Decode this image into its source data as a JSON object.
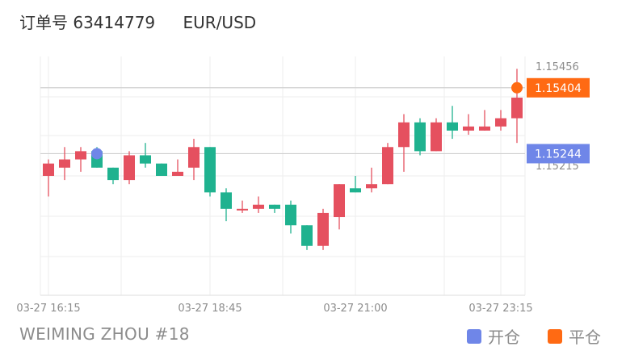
{
  "header": {
    "order_label": "订单号 63414779",
    "pair": "EUR/USD"
  },
  "footer": {
    "author": "WEIMING ZHOU #18",
    "legend_open": "开仓",
    "legend_close": "平仓"
  },
  "colors": {
    "up": "#e5505f",
    "down": "#1fb28f",
    "open_marker": "#6f86e8",
    "close_marker": "#ff6a13",
    "grid": "#eeeeee",
    "ref_line": "#cfcfcf"
  },
  "chart_data": {
    "type": "candlestick",
    "ylim": [
      1.149,
      1.1548
    ],
    "y_ticks": [
      "1.15456",
      "1.15215"
    ],
    "y_tick_values": [
      1.15456,
      1.15215
    ],
    "x_tick_labels": [
      "03-27 16:15",
      "03-27 18:45",
      "03-27 21:00",
      "03-27 23:15"
    ],
    "x_tick_indices": [
      0,
      10,
      19,
      28
    ],
    "price_labels": [
      {
        "label": "1.15404",
        "value": 1.15404,
        "color": "#ff6a13"
      },
      {
        "label": "1.15244",
        "value": 1.15244,
        "color": "#6f86e8"
      }
    ],
    "open_marker": {
      "index": 3,
      "value": 1.15244
    },
    "close_marker": {
      "index": 29,
      "value": 1.15404
    },
    "candles": [
      {
        "o": 1.1519,
        "h": 1.1523,
        "l": 1.1514,
        "c": 1.1522
      },
      {
        "o": 1.1521,
        "h": 1.1526,
        "l": 1.1518,
        "c": 1.1523
      },
      {
        "o": 1.1523,
        "h": 1.1526,
        "l": 1.152,
        "c": 1.1525
      },
      {
        "o": 1.1525,
        "h": 1.1526,
        "l": 1.1521,
        "c": 1.1521
      },
      {
        "o": 1.1521,
        "h": 1.1521,
        "l": 1.1517,
        "c": 1.1518
      },
      {
        "o": 1.1518,
        "h": 1.1525,
        "l": 1.1517,
        "c": 1.1524
      },
      {
        "o": 1.1524,
        "h": 1.1527,
        "l": 1.1521,
        "c": 1.1522
      },
      {
        "o": 1.1522,
        "h": 1.1522,
        "l": 1.1519,
        "c": 1.1519
      },
      {
        "o": 1.1519,
        "h": 1.1523,
        "l": 1.1519,
        "c": 1.152
      },
      {
        "o": 1.1521,
        "h": 1.1528,
        "l": 1.1518,
        "c": 1.1526
      },
      {
        "o": 1.1526,
        "h": 1.1526,
        "l": 1.1514,
        "c": 1.1515
      },
      {
        "o": 1.1515,
        "h": 1.1516,
        "l": 1.1508,
        "c": 1.1511
      },
      {
        "o": 1.1511,
        "h": 1.1513,
        "l": 1.151,
        "c": 1.1511
      },
      {
        "o": 1.1511,
        "h": 1.1514,
        "l": 1.151,
        "c": 1.1512
      },
      {
        "o": 1.1512,
        "h": 1.1512,
        "l": 1.151,
        "c": 1.1511
      },
      {
        "o": 1.1512,
        "h": 1.1513,
        "l": 1.1505,
        "c": 1.1507
      },
      {
        "o": 1.1507,
        "h": 1.1507,
        "l": 1.1501,
        "c": 1.1502
      },
      {
        "o": 1.1502,
        "h": 1.1511,
        "l": 1.1501,
        "c": 1.151
      },
      {
        "o": 1.1509,
        "h": 1.1517,
        "l": 1.1506,
        "c": 1.1517
      },
      {
        "o": 1.1516,
        "h": 1.1519,
        "l": 1.1515,
        "c": 1.1515
      },
      {
        "o": 1.1516,
        "h": 1.1521,
        "l": 1.1515,
        "c": 1.1517
      },
      {
        "o": 1.1517,
        "h": 1.1527,
        "l": 1.1517,
        "c": 1.1526
      },
      {
        "o": 1.1526,
        "h": 1.1534,
        "l": 1.152,
        "c": 1.1532
      },
      {
        "o": 1.1532,
        "h": 1.1533,
        "l": 1.1524,
        "c": 1.1525
      },
      {
        "o": 1.1525,
        "h": 1.1533,
        "l": 1.1525,
        "c": 1.1532
      },
      {
        "o": 1.1532,
        "h": 1.1536,
        "l": 1.1528,
        "c": 1.153
      },
      {
        "o": 1.153,
        "h": 1.1534,
        "l": 1.1529,
        "c": 1.1531
      },
      {
        "o": 1.153,
        "h": 1.1535,
        "l": 1.153,
        "c": 1.1531
      },
      {
        "o": 1.1531,
        "h": 1.1535,
        "l": 1.153,
        "c": 1.1533
      },
      {
        "o": 1.1533,
        "h": 1.1545,
        "l": 1.1527,
        "c": 1.1538
      }
    ]
  }
}
